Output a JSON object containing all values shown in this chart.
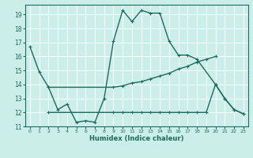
{
  "xlabel": "Humidex (Indice chaleur)",
  "bg_color": "#cceee8",
  "grid_color": "#ffffff",
  "line_color": "#1a6b60",
  "xlim": [
    -0.5,
    23.5
  ],
  "ylim": [
    11,
    19.7
  ],
  "yticks": [
    11,
    12,
    13,
    14,
    15,
    16,
    17,
    18,
    19
  ],
  "xticks": [
    0,
    1,
    2,
    3,
    4,
    5,
    6,
    7,
    8,
    9,
    10,
    11,
    12,
    13,
    14,
    15,
    16,
    17,
    18,
    19,
    20,
    21,
    22,
    23
  ],
  "line1_x": [
    0,
    1,
    2,
    3,
    4,
    5,
    6,
    7,
    8,
    9,
    10,
    11,
    12,
    13,
    14,
    15,
    16,
    17,
    18,
    20,
    21,
    22,
    23
  ],
  "line1_y": [
    16.7,
    14.9,
    13.8,
    12.2,
    12.6,
    11.3,
    11.4,
    11.3,
    13.0,
    17.1,
    19.3,
    18.5,
    19.3,
    19.1,
    19.1,
    17.1,
    16.1,
    16.1,
    15.8,
    14.0,
    13.0,
    12.2,
    11.9
  ],
  "line2_x": [
    2,
    9,
    10,
    11,
    12,
    13,
    14,
    15,
    16,
    17,
    18,
    19,
    20
  ],
  "line2_y": [
    13.8,
    13.8,
    13.9,
    14.1,
    14.2,
    14.4,
    14.6,
    14.8,
    15.1,
    15.3,
    15.6,
    15.8,
    16.0
  ],
  "line3_x": [
    2,
    9,
    10,
    11,
    12,
    13,
    14,
    15,
    16,
    17,
    18,
    19,
    20,
    21,
    22,
    23
  ],
  "line3_y": [
    12.0,
    12.0,
    12.0,
    12.0,
    12.0,
    12.0,
    12.0,
    12.0,
    12.0,
    12.0,
    12.0,
    12.0,
    14.0,
    13.0,
    12.2,
    11.9
  ]
}
